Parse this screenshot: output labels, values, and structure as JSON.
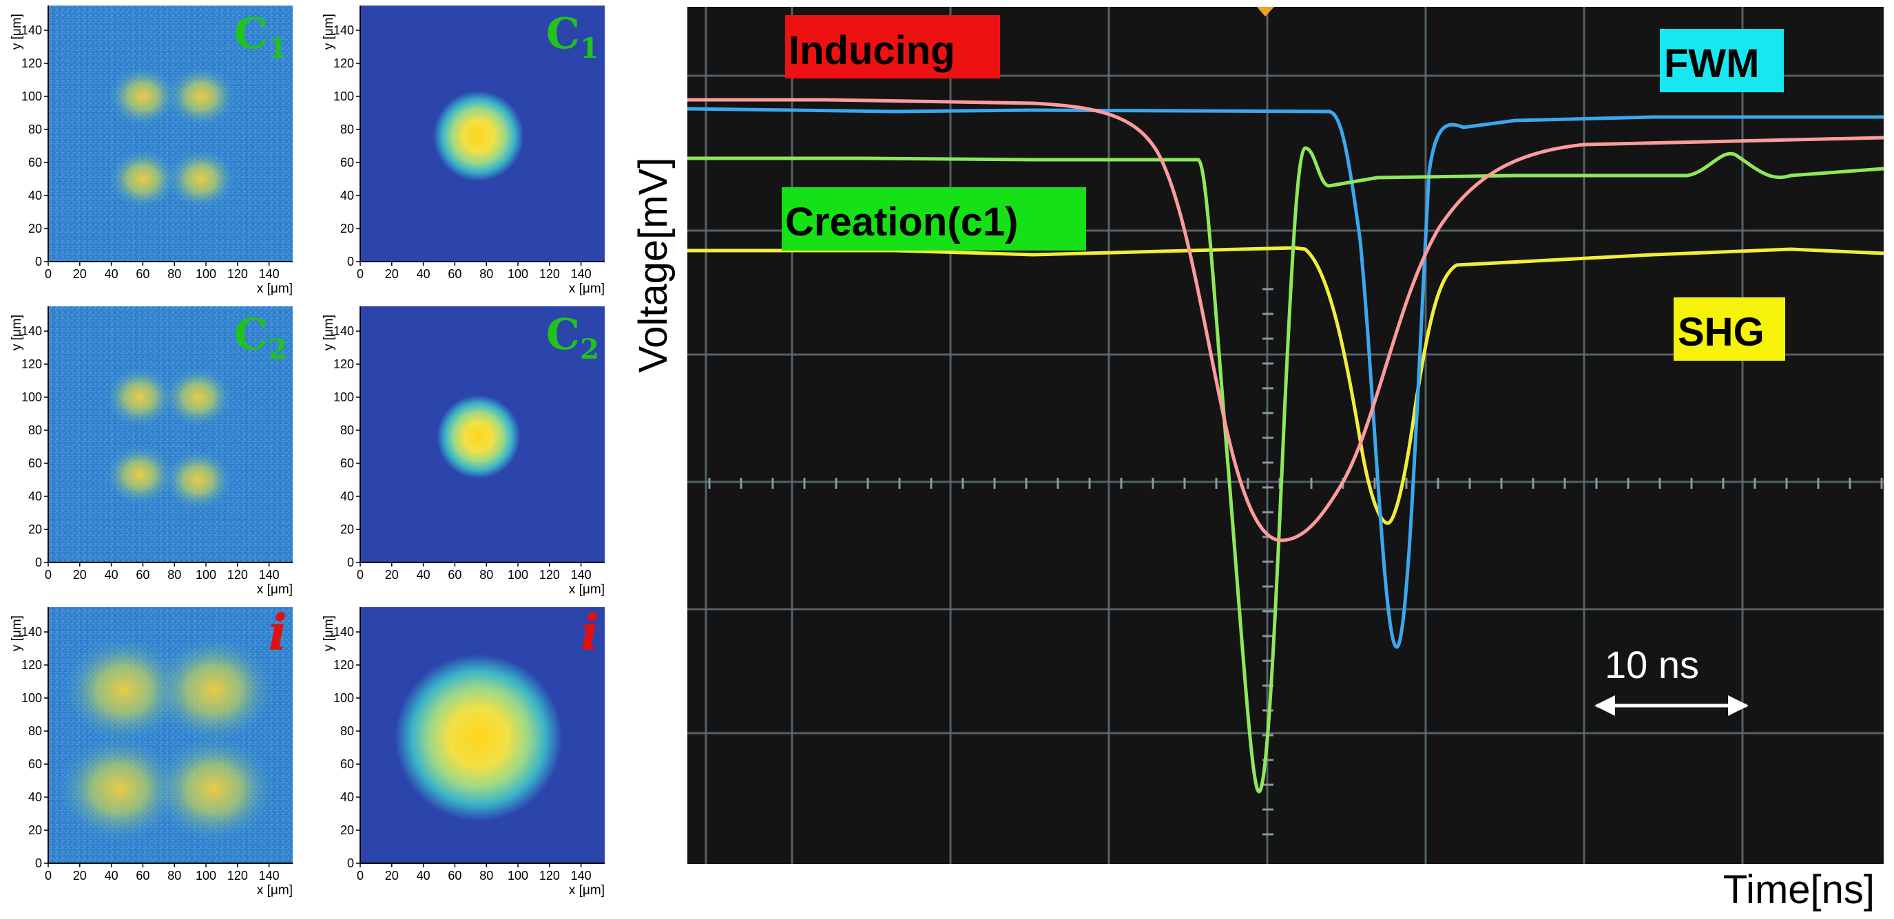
{
  "panels": [
    {
      "row": 0,
      "col": 0,
      "tag_main": "C",
      "tag_sub": "1",
      "tag_color": "#22c21c",
      "kind": "pattern",
      "spots": [
        [
          60,
          100,
          9
        ],
        [
          97,
          100,
          9
        ],
        [
          60,
          50,
          9
        ],
        [
          97,
          50,
          9
        ]
      ]
    },
    {
      "row": 0,
      "col": 1,
      "tag_main": "C",
      "tag_sub": "1",
      "tag_color": "#22c21c",
      "kind": "spot",
      "center": [
        75,
        76
      ],
      "radius": 13
    },
    {
      "row": 1,
      "col": 0,
      "tag_main": "C",
      "tag_sub": "2",
      "tag_color": "#22c21c",
      "kind": "pattern",
      "spots": [
        [
          58,
          100,
          9
        ],
        [
          95,
          100,
          9
        ],
        [
          58,
          53,
          9
        ],
        [
          95,
          50,
          9
        ]
      ]
    },
    {
      "row": 1,
      "col": 1,
      "tag_main": "C",
      "tag_sub": "2",
      "tag_color": "#22c21c",
      "kind": "spot",
      "center": [
        75,
        76
      ],
      "radius": 12
    },
    {
      "row": 2,
      "col": 0,
      "tag_main": "i",
      "tag_sub": "",
      "tag_color": "#e01010",
      "kind": "pattern",
      "spots": [
        [
          48,
          105,
          16
        ],
        [
          105,
          105,
          16
        ],
        [
          45,
          45,
          16
        ],
        [
          105,
          45,
          16
        ]
      ]
    },
    {
      "row": 2,
      "col": 1,
      "tag_main": "i",
      "tag_sub": "",
      "tag_color": "#e01010",
      "kind": "spot",
      "center": [
        75,
        76
      ],
      "radius": 24
    }
  ],
  "panel_axes": {
    "xlabel": "x [μm]",
    "ylabel": "y [μm]",
    "xticks": [
      "0",
      "20",
      "40",
      "60",
      "80",
      "100",
      "120",
      "140"
    ],
    "yticks": [
      "0",
      "20",
      "40",
      "60",
      "80",
      "100",
      "120",
      "140"
    ],
    "range": [
      0,
      155
    ]
  },
  "scope": {
    "ylabel": "Voltage[mV]",
    "xlabel": "Time[ns]",
    "scale_label": "10 ns",
    "labels": [
      {
        "key": "inducing",
        "text": "Inducing",
        "bg": "#ee1111"
      },
      {
        "key": "fwm",
        "text": "FWM",
        "bg": "#19e7ef"
      },
      {
        "key": "creation",
        "text": "Creation(c1)",
        "bg": "#16e016"
      },
      {
        "key": "shg",
        "text": "SHG",
        "bg": "#f6f20a"
      }
    ],
    "trace_colors": {
      "inducing": "#ff9b9b",
      "fwm": "#3aa8ee",
      "creation": "#8ee85a",
      "shg": "#f2ee3a"
    },
    "marker_color": "#f4a021"
  }
}
